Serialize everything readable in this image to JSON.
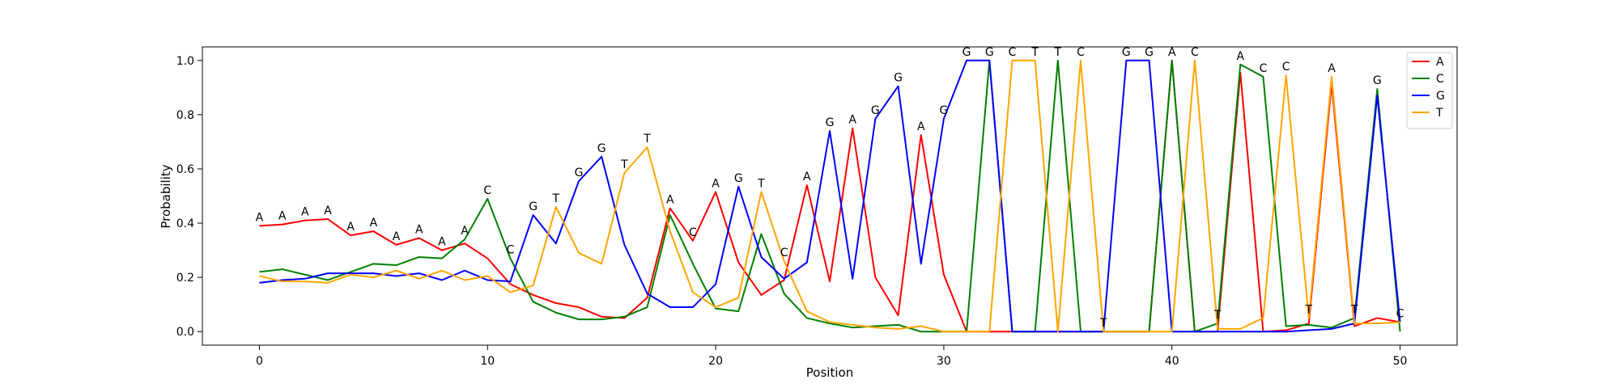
{
  "chart_data": {
    "type": "line",
    "title": "",
    "xlabel": "Position",
    "ylabel": "Probability",
    "xlim": [
      -2.5,
      52.5
    ],
    "ylim": [
      -0.05,
      1.05
    ],
    "xticks": [
      0,
      10,
      20,
      30,
      40,
      50
    ],
    "yticks": [
      0.0,
      0.2,
      0.4,
      0.6,
      0.8,
      1.0
    ],
    "ytick_labels": [
      "0.0",
      "0.2",
      "0.4",
      "0.6",
      "0.8",
      "1.0"
    ],
    "grid": false,
    "legend": "top-right",
    "x": [
      0,
      1,
      2,
      3,
      4,
      5,
      6,
      7,
      8,
      9,
      10,
      11,
      12,
      13,
      14,
      15,
      16,
      17,
      18,
      19,
      20,
      21,
      22,
      23,
      24,
      25,
      26,
      27,
      28,
      29,
      30,
      31,
      32,
      33,
      34,
      35,
      36,
      37,
      38,
      39,
      40,
      41,
      42,
      43,
      44,
      45,
      46,
      47,
      48,
      49,
      50
    ],
    "series": [
      {
        "name": "A",
        "color": "#ff0000",
        "values": [
          0.39,
          0.395,
          0.41,
          0.415,
          0.355,
          0.37,
          0.32,
          0.345,
          0.3,
          0.325,
          0.27,
          0.175,
          0.135,
          0.105,
          0.09,
          0.055,
          0.05,
          0.125,
          0.455,
          0.335,
          0.515,
          0.255,
          0.135,
          0.19,
          0.54,
          0.185,
          0.75,
          0.2,
          0.06,
          0.725,
          0.21,
          0.0,
          0.0,
          0.0,
          0.0,
          0.0,
          0.0,
          0.0,
          0.0,
          0.0,
          1.0,
          0.0,
          0.0,
          0.955,
          0.0,
          0.005,
          0.03,
          0.915,
          0.02,
          0.05,
          0.035
        ]
      },
      {
        "name": "C",
        "color": "#008000",
        "values": [
          0.22,
          0.23,
          0.21,
          0.19,
          0.22,
          0.25,
          0.245,
          0.275,
          0.27,
          0.34,
          0.49,
          0.27,
          0.11,
          0.07,
          0.045,
          0.045,
          0.055,
          0.09,
          0.43,
          0.25,
          0.085,
          0.075,
          0.36,
          0.14,
          0.05,
          0.03,
          0.015,
          0.02,
          0.025,
          0.0,
          0.0,
          0.0,
          1.0,
          0.0,
          0.0,
          1.0,
          0.0,
          0.0,
          0.0,
          0.0,
          1.0,
          0.0,
          0.03,
          0.985,
          0.94,
          0.02,
          0.025,
          0.015,
          0.05,
          0.895,
          0.0
        ]
      },
      {
        "name": "G",
        "color": "#0000ff",
        "values": [
          0.18,
          0.19,
          0.195,
          0.215,
          0.215,
          0.215,
          0.205,
          0.215,
          0.19,
          0.225,
          0.19,
          0.185,
          0.43,
          0.325,
          0.555,
          0.645,
          0.32,
          0.14,
          0.09,
          0.09,
          0.175,
          0.535,
          0.275,
          0.195,
          0.255,
          0.74,
          0.195,
          0.785,
          0.905,
          0.25,
          0.785,
          1.0,
          1.0,
          0.0,
          0.0,
          0.0,
          0.0,
          0.0,
          1.0,
          1.0,
          0.0,
          0.0,
          0.0,
          0.0,
          0.0,
          0.0,
          0.005,
          0.01,
          0.03,
          0.87,
          0.035
        ]
      },
      {
        "name": "T",
        "color": "#ffa500",
        "values": [
          0.205,
          0.185,
          0.185,
          0.18,
          0.21,
          0.2,
          0.225,
          0.195,
          0.225,
          0.19,
          0.205,
          0.145,
          0.17,
          0.46,
          0.29,
          0.25,
          0.585,
          0.68,
          0.37,
          0.145,
          0.09,
          0.125,
          0.515,
          0.26,
          0.075,
          0.035,
          0.025,
          0.015,
          0.01,
          0.02,
          0.0,
          0.0,
          0.0,
          1.0,
          1.0,
          0.0,
          1.0,
          0.0,
          0.0,
          0.0,
          0.0,
          1.0,
          0.01,
          0.01,
          0.05,
          0.945,
          0.05,
          0.94,
          0.03,
          0.03,
          0.035
        ]
      }
    ],
    "annotations": [
      "A",
      "A",
      "A",
      "A",
      "A",
      "A",
      "A",
      "A",
      "A",
      "A",
      "C",
      "C",
      "G",
      "T",
      "G",
      "G",
      "T",
      "T",
      "A",
      "C",
      "A",
      "G",
      "T",
      "C",
      "A",
      "G",
      "A",
      "G",
      "G",
      "A",
      "G",
      "G",
      "G",
      "C",
      "T",
      "T",
      "C",
      "T",
      "G",
      "G",
      "A",
      "C",
      "T",
      "A",
      "C",
      "C",
      "T",
      "A",
      "T",
      "G",
      "C"
    ]
  }
}
